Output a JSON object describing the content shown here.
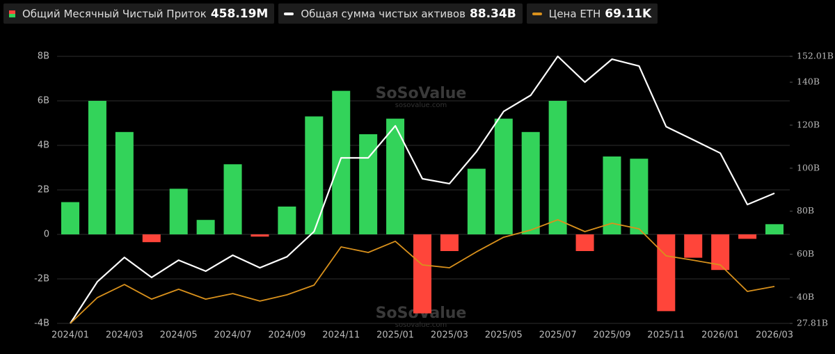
{
  "chart_data": {
    "type": "bar",
    "categories": [
      "2024/01",
      null,
      "2024/03",
      null,
      "2024/05",
      null,
      "2024/07",
      null,
      "2024/09",
      null,
      "2024/11",
      null,
      "2025/01",
      null,
      "2025/03",
      null,
      "2025/05",
      null,
      "2025/07",
      null,
      "2025/09",
      null,
      "2025/11",
      null,
      "2026/01",
      null,
      "2026/03"
    ],
    "series": [
      {
        "name": "Общий Месячный Чистый Приток",
        "legend_value": "458.19M",
        "type": "bar",
        "color": "#33d35a",
        "negative_color": "#ff453a",
        "values": [
          1.45,
          6.0,
          4.6,
          -0.35,
          2.05,
          0.65,
          3.15,
          -0.1,
          1.25,
          5.3,
          6.45,
          4.5,
          5.2,
          -3.55,
          -0.75,
          2.95,
          5.2,
          4.6,
          6.0,
          -0.75,
          3.5,
          3.4,
          -3.45,
          -1.05,
          -1.6,
          -0.2,
          0.45819
        ]
      },
      {
        "name": "Общая сумма чистых активов",
        "legend_value": "88.34B",
        "type": "line",
        "axis": "y2",
        "color": "#ffffff",
        "values": [
          27.81,
          47.2,
          58.5,
          49.2,
          57.2,
          52.1,
          59.5,
          53.7,
          58.8,
          70.5,
          104.8,
          104.8,
          119.7,
          95.1,
          92.8,
          107.7,
          126.4,
          133.9,
          152.01,
          140.0,
          150.7,
          147.5,
          119.3,
          113.2,
          107.0,
          83.1,
          88.34
        ]
      },
      {
        "name": "Цена ETH",
        "legend_value": "69.11K",
        "type": "line",
        "axis": "y2",
        "color": "#d9911c",
        "values": [
          27.81,
          39.8,
          45.9,
          39.1,
          43.7,
          39.1,
          41.7,
          38.2,
          41.1,
          45.6,
          63.4,
          60.8,
          66.0,
          55.0,
          53.7,
          61.1,
          67.9,
          71.2,
          76.0,
          70.5,
          74.4,
          71.8,
          59.2,
          57.2,
          55.0,
          42.7,
          45.0
        ]
      }
    ],
    "ylim": [
      -4,
      8
    ],
    "yticks": [
      {
        "value": -4,
        "label": "-4B"
      },
      {
        "value": -2,
        "label": "-2B"
      },
      0,
      {
        "value": 2,
        "label": "2B"
      },
      {
        "value": 4,
        "label": "4B"
      },
      {
        "value": 6,
        "label": "6B"
      },
      {
        "value": 8,
        "label": "8B"
      }
    ],
    "y2lim": [
      27.81,
      152.01
    ],
    "y2ticks": [
      {
        "value": 27.81,
        "label": "27.81B"
      },
      {
        "value": 40,
        "label": "40B"
      },
      {
        "value": 60,
        "label": "60B"
      },
      {
        "value": 80,
        "label": "80B"
      },
      {
        "value": 100,
        "label": "100B"
      },
      {
        "value": 120,
        "label": "120B"
      },
      {
        "value": 140,
        "label": "140B"
      },
      {
        "value": 152.01,
        "label": "152.01B"
      }
    ],
    "grid": true,
    "watermark": [
      "SoSoValue",
      "sosovalue.com"
    ]
  }
}
